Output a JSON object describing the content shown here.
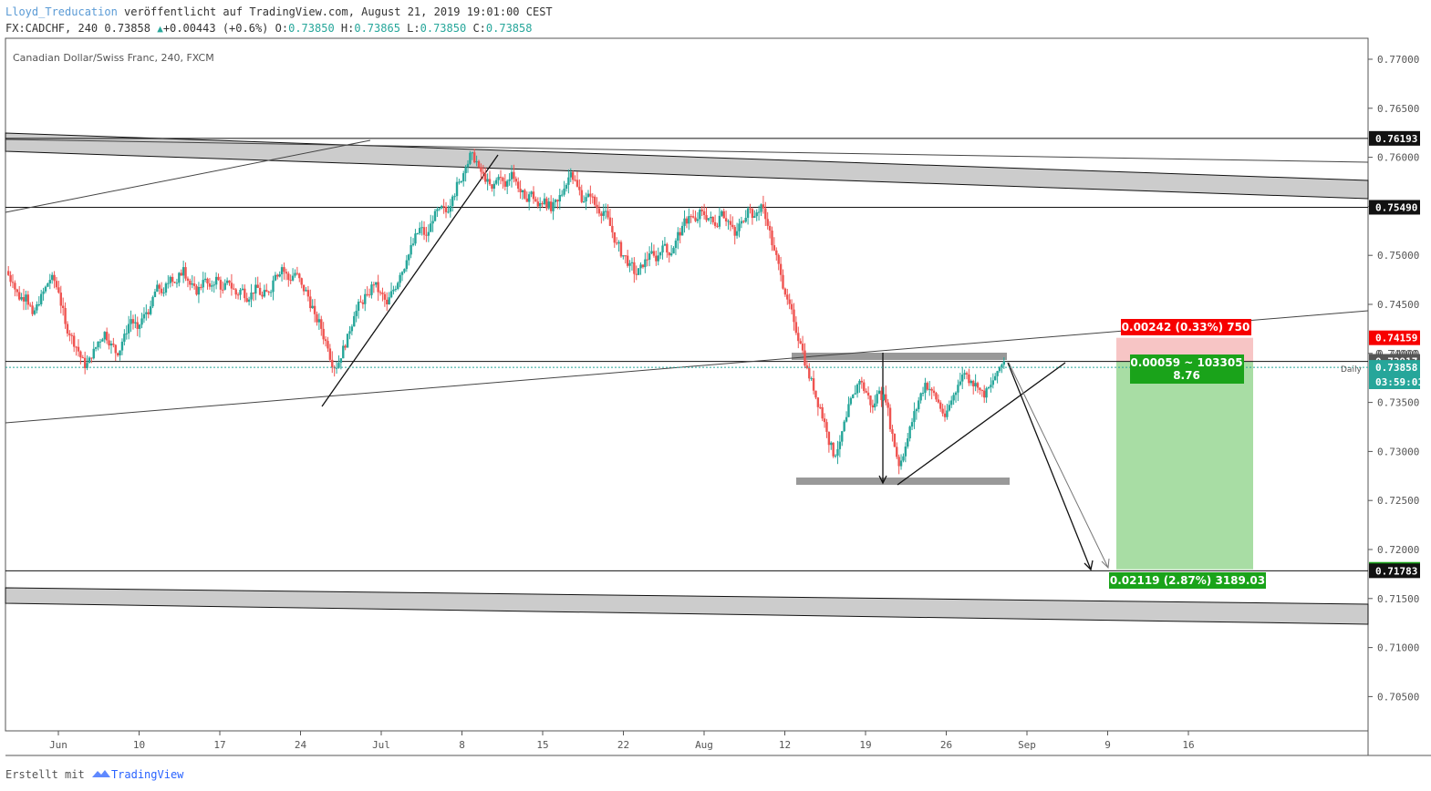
{
  "header": {
    "author": "Lloyd_Treducation",
    "published": " veröffentlicht auf TradingView.com, August 21, 2019 19:01:00 CEST",
    "symbol_line": "FX:CADCHF, 240 0.73858",
    "change": "+0.00443 (+0.6%)",
    "o_label": "O:",
    "o_value": "0.73850",
    "h_label": "H:",
    "h_value": "0.73865",
    "l_label": "L:",
    "l_value": "0.73850",
    "c_label": "C:",
    "c_value": "0.73858"
  },
  "footer": {
    "created_with": "Erstellt mit",
    "brand": "TradingView",
    "logo_icon": "tradingview-logo-icon"
  },
  "colors": {
    "up": "#26a69a",
    "down": "#ef5350",
    "zone": "#c8c8c8",
    "profit_zone": "#a8dda4",
    "stop_zone": "#f7c5c5",
    "label_red": "#f70000",
    "label_green": "#1aa31a",
    "label_teal": "#26a69a"
  },
  "chart_data": {
    "type": "candlestick",
    "title": "Canadian Dollar/Swiss Franc, 240, FXCM",
    "interval_label": "Daily",
    "y_axis": {
      "range": [
        0.7025,
        0.7725
      ],
      "ticks": [
        "0.77000",
        "0.76500",
        "0.76000",
        "0.75500",
        "0.75000",
        "0.74500",
        "0.74000",
        "0.73500",
        "0.73000",
        "0.72500",
        "0.72000",
        "0.71500",
        "0.71000",
        "0.70500"
      ]
    },
    "x_axis": {
      "ticks": [
        "Jun",
        "10",
        "17",
        "24",
        "Jul",
        "8",
        "15",
        "22",
        "Aug",
        "12",
        "19",
        "26",
        "Sep",
        "9",
        "16"
      ]
    },
    "price_labels": [
      {
        "text": "0.76193",
        "value": 0.76193,
        "style": "black"
      },
      {
        "text": "0.75490",
        "value": 0.7549,
        "style": "black"
      },
      {
        "text": "0.74159",
        "value": 0.74159,
        "style": "red"
      },
      {
        "text": "0.74000",
        "value": 0.74,
        "style": "hidden-tick"
      },
      {
        "text": "0.73918",
        "value": 0.73918,
        "style": "black"
      },
      {
        "text": "0.73917",
        "value": 0.73917,
        "style": "gray"
      },
      {
        "text": "0.73858",
        "value": 0.73858,
        "style": "teal"
      },
      {
        "text": "03:59:01",
        "value": 0.7371,
        "style": "teal"
      },
      {
        "text": "0.71798",
        "value": 0.71798,
        "style": "green"
      },
      {
        "text": "0.71783",
        "value": 0.71783,
        "style": "black"
      }
    ],
    "horizontal_levels": [
      0.76193,
      0.7549,
      0.73918,
      0.71783
    ],
    "position": {
      "direction": "short",
      "entry": 0.73918,
      "stop": 0.74159,
      "target": 0.71798,
      "stop_label": "0.00242 (0.33%) 750",
      "mid_label_1": "0.00059 ~ 103305",
      "mid_label_2": "8.76",
      "target_label": "0.02119 (2.87%) 3189.03"
    },
    "price_path": [
      [
        0.7484,
        0.7472
      ],
      [
        0.7472,
        0.7455
      ],
      [
        0.7455,
        0.746
      ],
      [
        0.746,
        0.744
      ],
      [
        0.744,
        0.745
      ],
      [
        0.745,
        0.7468
      ],
      [
        0.7468,
        0.748
      ],
      [
        0.748,
        0.7462
      ],
      [
        0.7462,
        0.743
      ],
      [
        0.743,
        0.7418
      ],
      [
        0.7418,
        0.7402
      ],
      [
        0.7402,
        0.7385
      ],
      [
        0.7385,
        0.7395
      ],
      [
        0.7395,
        0.7412
      ],
      [
        0.7412,
        0.7422
      ],
      [
        0.7422,
        0.741
      ],
      [
        0.741,
        0.7398
      ],
      [
        0.7398,
        0.742
      ],
      [
        0.742,
        0.7435
      ],
      [
        0.7435,
        0.7425
      ],
      [
        0.7425,
        0.744
      ],
      [
        0.744,
        0.7448
      ],
      [
        0.7448,
        0.747
      ],
      [
        0.747,
        0.7462
      ],
      [
        0.7462,
        0.7478
      ],
      [
        0.7478,
        0.7472
      ],
      [
        0.7472,
        0.7488
      ],
      [
        0.7488,
        0.747
      ],
      [
        0.747,
        0.746
      ],
      [
        0.746,
        0.7475
      ],
      [
        0.7475,
        0.7468
      ],
      [
        0.7468,
        0.7478
      ],
      [
        0.7478,
        0.7465
      ],
      [
        0.7465,
        0.7472
      ],
      [
        0.7472,
        0.746
      ],
      [
        0.746,
        0.7466
      ],
      [
        0.7466,
        0.7455
      ],
      [
        0.7455,
        0.747
      ],
      [
        0.747,
        0.7458
      ],
      [
        0.7458,
        0.7462
      ],
      [
        0.7462,
        0.748
      ],
      [
        0.748,
        0.7488
      ],
      [
        0.7488,
        0.7475
      ],
      [
        0.7475,
        0.7482
      ],
      [
        0.7482,
        0.747
      ],
      [
        0.747,
        0.7458
      ],
      [
        0.7458,
        0.744
      ],
      [
        0.744,
        0.7425
      ],
      [
        0.7425,
        0.7405
      ],
      [
        0.7405,
        0.7385
      ],
      [
        0.7385,
        0.7395
      ],
      [
        0.7395,
        0.742
      ],
      [
        0.742,
        0.7438
      ],
      [
        0.7438,
        0.7452
      ],
      [
        0.7452,
        0.746
      ],
      [
        0.746,
        0.747
      ],
      [
        0.747,
        0.7462
      ],
      [
        0.7462,
        0.745
      ],
      [
        0.745,
        0.7465
      ],
      [
        0.7465,
        0.748
      ],
      [
        0.748,
        0.7495
      ],
      [
        0.7495,
        0.7512
      ],
      [
        0.7512,
        0.7528
      ],
      [
        0.7528,
        0.752
      ],
      [
        0.752,
        0.7535
      ],
      [
        0.7535,
        0.7548
      ],
      [
        0.7548,
        0.7544
      ],
      [
        0.7544,
        0.756
      ],
      [
        0.756,
        0.7575
      ],
      [
        0.7575,
        0.759
      ],
      [
        0.759,
        0.7605
      ],
      [
        0.7605,
        0.759
      ],
      [
        0.759,
        0.7575
      ],
      [
        0.7575,
        0.7568
      ],
      [
        0.7568,
        0.758
      ],
      [
        0.758,
        0.757
      ],
      [
        0.757,
        0.7585
      ],
      [
        0.7585,
        0.7568
      ],
      [
        0.7568,
        0.7558
      ],
      [
        0.7558,
        0.7565
      ],
      [
        0.7565,
        0.755
      ],
      [
        0.755,
        0.7558
      ],
      [
        0.7558,
        0.7545
      ],
      [
        0.7545,
        0.7555
      ],
      [
        0.7555,
        0.7568
      ],
      [
        0.7568,
        0.7585
      ],
      [
        0.7585,
        0.757
      ],
      [
        0.757,
        0.7555
      ],
      [
        0.7555,
        0.756
      ],
      [
        0.756,
        0.7548
      ],
      [
        0.7548,
        0.7545
      ],
      [
        0.7545,
        0.753
      ],
      [
        0.753,
        0.7512
      ],
      [
        0.7512,
        0.75
      ],
      [
        0.75,
        0.7492
      ],
      [
        0.7492,
        0.748
      ],
      [
        0.748,
        0.7488
      ],
      [
        0.7488,
        0.7502
      ],
      [
        0.7502,
        0.7494
      ],
      [
        0.7494,
        0.751
      ],
      [
        0.751,
        0.75
      ],
      [
        0.75,
        0.7515
      ],
      [
        0.7515,
        0.753
      ],
      [
        0.753,
        0.754
      ],
      [
        0.754,
        0.7535
      ],
      [
        0.7535,
        0.7545
      ],
      [
        0.7545,
        0.7538
      ],
      [
        0.7538,
        0.753
      ],
      [
        0.753,
        0.7545
      ],
      [
        0.7545,
        0.7535
      ],
      [
        0.7535,
        0.752
      ],
      [
        0.752,
        0.7535
      ],
      [
        0.7535,
        0.7548
      ],
      [
        0.7548,
        0.754
      ],
      [
        0.754,
        0.7552
      ],
      [
        0.7552,
        0.753
      ],
      [
        0.753,
        0.7505
      ],
      [
        0.7505,
        0.748
      ],
      [
        0.748,
        0.7455
      ],
      [
        0.7455,
        0.7432
      ],
      [
        0.7432,
        0.741
      ],
      [
        0.741,
        0.7385
      ],
      [
        0.7385,
        0.7362
      ],
      [
        0.7362,
        0.7345
      ],
      [
        0.7345,
        0.732
      ],
      [
        0.732,
        0.7295
      ],
      [
        0.7295,
        0.731
      ],
      [
        0.731,
        0.7335
      ],
      [
        0.7335,
        0.7358
      ],
      [
        0.7358,
        0.7372
      ],
      [
        0.7372,
        0.736
      ],
      [
        0.736,
        0.7345
      ],
      [
        0.7345,
        0.7362
      ],
      [
        0.7362,
        0.735
      ],
      [
        0.735,
        0.7318
      ],
      [
        0.7318,
        0.7285
      ],
      [
        0.7285,
        0.7305
      ],
      [
        0.7305,
        0.733
      ],
      [
        0.733,
        0.7352
      ],
      [
        0.7352,
        0.737
      ],
      [
        0.737,
        0.7362
      ],
      [
        0.7362,
        0.735
      ],
      [
        0.735,
        0.7335
      ],
      [
        0.7335,
        0.7352
      ],
      [
        0.7352,
        0.7368
      ],
      [
        0.7368,
        0.738
      ],
      [
        0.738,
        0.7372
      ],
      [
        0.7372,
        0.7365
      ],
      [
        0.7365,
        0.7355
      ],
      [
        0.7355,
        0.7368
      ],
      [
        0.7368,
        0.7382
      ],
      [
        0.7382,
        0.7392
      ]
    ]
  }
}
